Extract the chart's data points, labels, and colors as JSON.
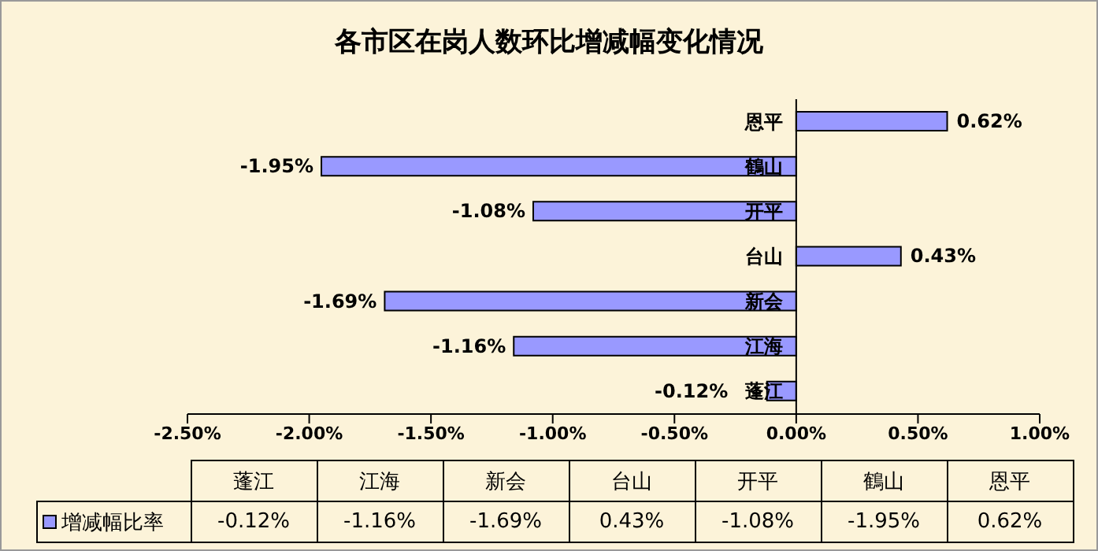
{
  "chart_data": {
    "type": "bar",
    "orientation": "horizontal",
    "title": "各市区在岗人数环比增减幅变化情况",
    "categories": [
      "恩平",
      "鶴山",
      "开平",
      "台山",
      "新会",
      "江海",
      "蓬江"
    ],
    "series": [
      {
        "name": "增减幅比率",
        "color": "#9999ff",
        "values": [
          0.62,
          -1.95,
          -1.08,
          0.43,
          -1.69,
          -1.16,
          -0.12
        ],
        "value_labels": [
          "0.62%",
          "-1.95%",
          "-1.08%",
          "0.43%",
          "-1.69%",
          "-1.16%",
          "-0.12%"
        ]
      }
    ],
    "xlim": [
      -2.5,
      1
    ],
    "xticks": [
      {
        "value": -2.5,
        "label": "-2.50%"
      },
      {
        "value": -2,
        "label": "-2.00%"
      },
      {
        "value": -1.5,
        "label": "-1.50%"
      },
      {
        "value": -1,
        "label": "-1.00%"
      },
      {
        "value": -0.5,
        "label": "-0.50%"
      },
      {
        "value": 0,
        "label": "0.00%"
      },
      {
        "value": 0.5,
        "label": "0.50%"
      },
      {
        "value": 1,
        "label": "1.00%"
      }
    ],
    "legend": "bottom"
  }
}
